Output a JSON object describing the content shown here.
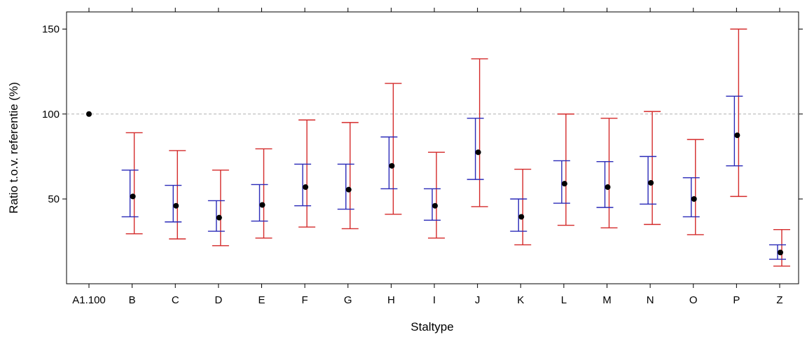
{
  "chart_data": {
    "type": "dot-with-error-bars",
    "xlabel": "Staltype",
    "ylabel": "Ratio t.o.v. referentie (%)",
    "ylim": [
      0,
      160
    ],
    "yticks": [
      "50",
      "100",
      "150"
    ],
    "ytick_values": [
      50,
      100,
      150
    ],
    "reference_line": 100,
    "categories": [
      "A1.100",
      "B",
      "C",
      "D",
      "E",
      "F",
      "G",
      "H",
      "I",
      "J",
      "K",
      "L",
      "M",
      "N",
      "O",
      "P",
      "Z"
    ],
    "estimate": [
      100,
      51.5,
      46,
      39,
      46.5,
      57,
      55.5,
      69.5,
      46,
      77.5,
      39.5,
      59,
      57,
      59.5,
      50,
      87.5,
      18.5
    ],
    "inner_interval": {
      "color": "#2a2ab8",
      "lower": [
        null,
        39.5,
        36.5,
        31,
        37,
        46,
        44,
        56,
        37.5,
        61.5,
        31,
        47.5,
        45,
        47,
        39.5,
        69.5,
        14.5
      ],
      "upper": [
        null,
        67,
        58,
        49,
        58.5,
        70.5,
        70.5,
        86.5,
        56,
        97.5,
        50,
        72.5,
        72,
        75,
        62.5,
        110.5,
        23
      ]
    },
    "outer_interval": {
      "color": "#d42a2a",
      "lower": [
        null,
        29.5,
        26.5,
        22.5,
        27,
        33.5,
        32.5,
        41,
        27,
        45.5,
        23,
        34.5,
        33,
        35,
        29,
        51.5,
        10.5
      ],
      "upper": [
        null,
        89,
        78.5,
        67,
        79.5,
        96.5,
        95,
        118,
        77.5,
        132.5,
        67.5,
        100,
        97.5,
        101.5,
        85,
        150,
        32
      ]
    }
  }
}
